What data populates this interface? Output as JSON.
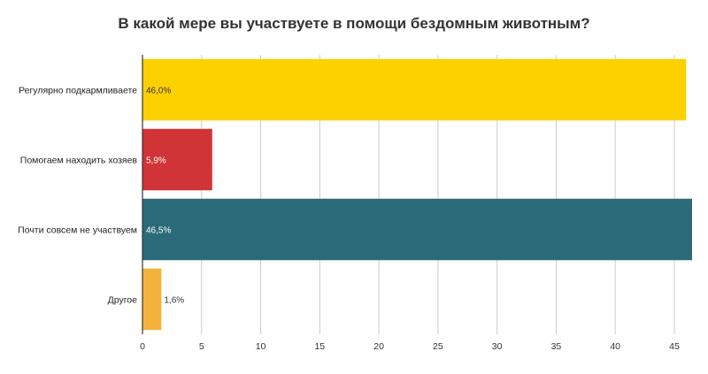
{
  "chart_data": {
    "type": "bar",
    "orientation": "horizontal",
    "title": "В какой мере вы участвуете в помощи бездомным животным?",
    "categories": [
      "Регулярно подкармливаете",
      "Помогаем находить хозяев",
      "Почти совсем не участвуем",
      "Другое"
    ],
    "values": [
      46.0,
      5.9,
      46.5,
      1.6
    ],
    "data_labels": [
      "46,0%",
      "5,9%",
      "46,5%",
      "1,6%"
    ],
    "colors": [
      "#FDD000",
      "#D13437",
      "#2B6A78",
      "#F4B23C"
    ],
    "label_colors": [
      "#333333",
      "#ffffff",
      "#ffffff",
      "#333333"
    ],
    "xlim": [
      0,
      46.5
    ],
    "x_ticks": [
      0,
      5,
      10,
      15,
      20,
      25,
      30,
      35,
      40,
      45
    ],
    "x_tick_labels": [
      "0",
      "5",
      "10",
      "15",
      "20",
      "25",
      "30",
      "35",
      "40",
      "45"
    ],
    "grid": true,
    "legend": "none"
  }
}
